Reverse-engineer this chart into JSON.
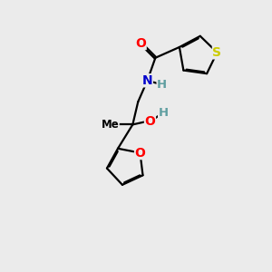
{
  "background_color": "#ebebeb",
  "bond_color": "#000000",
  "atom_colors": {
    "S": "#cccc00",
    "O": "#ff0000",
    "N": "#0000cc",
    "H": "#5f9ea0",
    "C": "#000000"
  },
  "lw": 1.6,
  "fontsize": 9.5
}
